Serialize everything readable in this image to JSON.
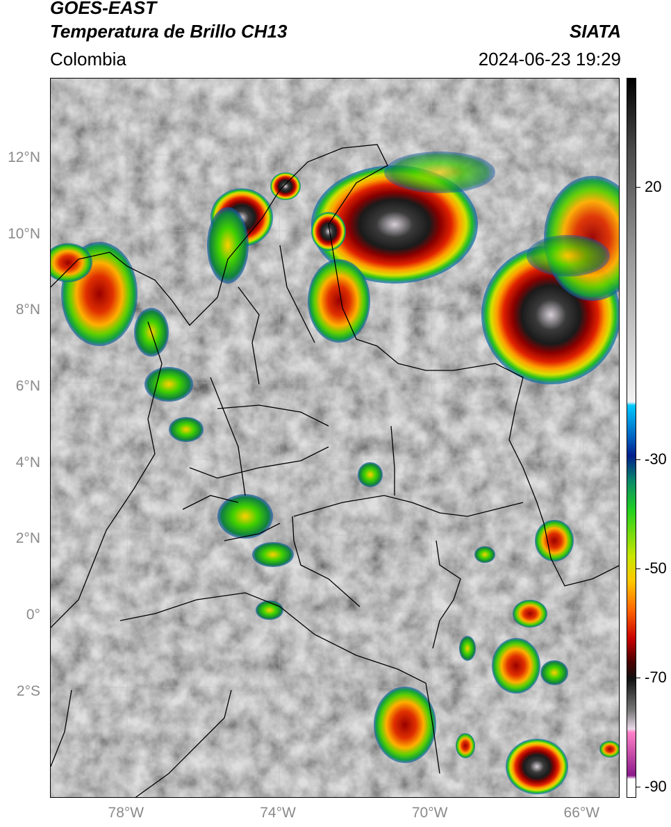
{
  "header": {
    "satellite": "GOES-EAST",
    "product": "Temperatura de Brillo CH13",
    "brand": "SIATA",
    "region": "Colombia",
    "timestamp": "2024-06-23 19:29"
  },
  "map": {
    "lon_range": [
      -80,
      -65
    ],
    "lat_range": [
      -4.8,
      14.1
    ],
    "x_ticks": [
      {
        "lon": -78,
        "label": "78°W"
      },
      {
        "lon": -74,
        "label": "74°W"
      },
      {
        "lon": -70,
        "label": "70°W"
      },
      {
        "lon": -66,
        "label": "66°W"
      }
    ],
    "y_ticks": [
      {
        "lat": 12,
        "label": "12°N"
      },
      {
        "lat": 10,
        "label": "10°N"
      },
      {
        "lat": 8,
        "label": "8°N"
      },
      {
        "lat": 6,
        "label": "6°N"
      },
      {
        "lat": 4,
        "label": "4°N"
      },
      {
        "lat": 2,
        "label": "2°N"
      },
      {
        "lat": 0,
        "label": "0°"
      },
      {
        "lat": -2,
        "label": "2°S"
      }
    ]
  },
  "colorbar": {
    "range": [
      -92,
      40
    ],
    "ticks": [
      {
        "value": 20,
        "label": "20"
      },
      {
        "value": -30,
        "label": "-30"
      },
      {
        "value": -50,
        "label": "-50"
      },
      {
        "value": -70,
        "label": "-70"
      },
      {
        "value": -90,
        "label": "-90"
      }
    ]
  }
}
